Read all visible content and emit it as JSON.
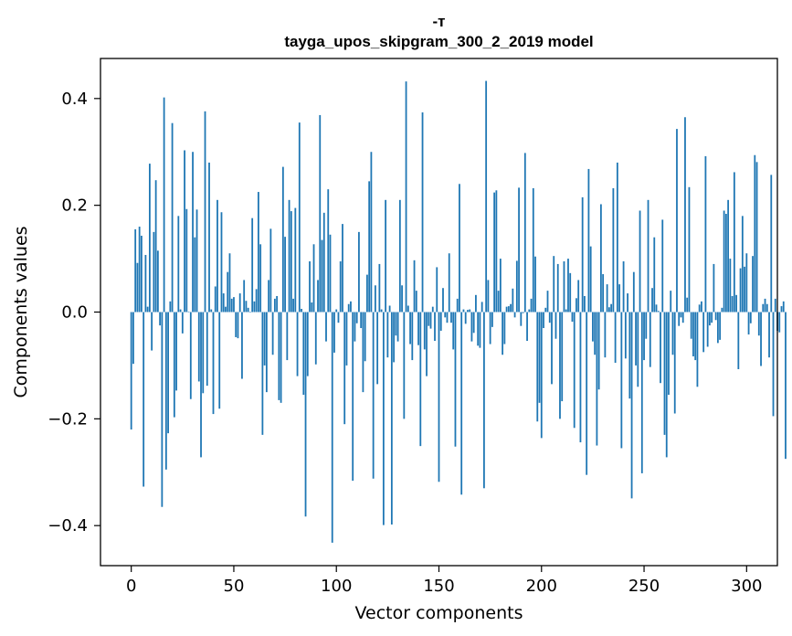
{
  "chart_data": {
    "type": "bar",
    "title": "-т",
    "subtitle": "tayga_upos_skipgram_300_2_2019 model",
    "xlabel": "Vector components",
    "ylabel": "Components values",
    "xlim": [
      -15,
      315
    ],
    "ylim": [
      -0.475,
      0.475
    ],
    "x_ticks": [
      0,
      50,
      100,
      150,
      200,
      250,
      300
    ],
    "y_ticks": [
      -0.4,
      -0.2,
      0.0,
      0.2,
      0.4
    ],
    "y_tick_labels": [
      "−0.4",
      "−0.2",
      "0.0",
      "0.2",
      "0.4"
    ],
    "bar_color": "#1f77b4",
    "grid": false,
    "values": [
      -0.22,
      -0.097,
      0.155,
      0.092,
      0.16,
      0.143,
      -0.327,
      0.107,
      0.01,
      0.278,
      -0.072,
      0.15,
      0.247,
      0.115,
      -0.025,
      -0.365,
      0.402,
      -0.295,
      -0.227,
      0.02,
      0.354,
      -0.197,
      -0.147,
      0.18,
      0.005,
      -0.04,
      0.303,
      0.193,
      0.001,
      -0.163,
      0.3,
      0.14,
      0.192,
      -0.13,
      -0.272,
      -0.152,
      0.376,
      -0.138,
      0.28,
      0.005,
      -0.191,
      0.048,
      0.21,
      -0.181,
      0.187,
      0.035,
      0.01,
      0.075,
      0.11,
      0.025,
      0.028,
      -0.047,
      -0.049,
      0.035,
      -0.125,
      0.06,
      0.021,
      0.008,
      -0.001,
      0.176,
      0.02,
      0.043,
      0.225,
      0.127,
      -0.23,
      -0.1,
      -0.15,
      0.06,
      0.156,
      -0.08,
      0.025,
      0.03,
      -0.165,
      -0.17,
      0.272,
      0.141,
      -0.09,
      0.21,
      0.189,
      0.025,
      0.195,
      -0.12,
      0.355,
      0.006,
      -0.155,
      -0.383,
      -0.12,
      0.095,
      0.018,
      0.127,
      -0.098,
      0.06,
      0.369,
      0.135,
      0.186,
      -0.055,
      0.23,
      0.145,
      -0.432,
      -0.076,
      0.005,
      -0.02,
      0.095,
      0.165,
      -0.21,
      -0.1,
      0.015,
      0.02,
      -0.316,
      -0.055,
      -0.021,
      0.15,
      -0.03,
      -0.15,
      -0.092,
      0.07,
      0.245,
      0.3,
      -0.312,
      0.05,
      -0.135,
      0.09,
      0.005,
      -0.399,
      0.21,
      -0.085,
      0.012,
      -0.398,
      -0.094,
      -0.044,
      -0.055,
      0.21,
      0.05,
      -0.2,
      0.432,
      0.012,
      -0.06,
      -0.09,
      0.097,
      0.04,
      -0.062,
      -0.251,
      0.374,
      -0.07,
      -0.12,
      -0.026,
      -0.031,
      0.01,
      -0.054,
      0.084,
      -0.318,
      -0.035,
      0.045,
      -0.01,
      -0.02,
      0.11,
      -0.02,
      -0.07,
      -0.252,
      0.025,
      0.24,
      -0.342,
      0.005,
      -0.022,
      0.004,
      0.005,
      -0.055,
      -0.039,
      0.032,
      -0.063,
      -0.067,
      0.019,
      -0.33,
      0.433,
      0.06,
      -0.06,
      -0.028,
      0.224,
      0.228,
      0.04,
      0.1,
      -0.08,
      -0.06,
      0.01,
      0.011,
      0.015,
      0.044,
      -0.01,
      0.096,
      0.233,
      -0.026,
      -0.002,
      0.298,
      -0.054,
      0.005,
      0.025,
      0.232,
      0.104,
      -0.205,
      -0.17,
      -0.236,
      -0.03,
      0.008,
      0.04,
      -0.02,
      -0.135,
      0.105,
      -0.05,
      0.09,
      -0.2,
      -0.167,
      0.095,
      0.005,
      0.1,
      0.073,
      -0.018,
      -0.217,
      0.026,
      0.06,
      -0.244,
      0.215,
      0.03,
      -0.305,
      0.268,
      0.123,
      -0.055,
      -0.08,
      -0.25,
      -0.145,
      0.202,
      0.071,
      -0.085,
      0.052,
      0.009,
      0.015,
      0.232,
      -0.095,
      0.28,
      0.052,
      -0.255,
      0.095,
      -0.087,
      0.035,
      -0.162,
      -0.349,
      0.075,
      -0.1,
      -0.14,
      0.19,
      -0.302,
      -0.09,
      -0.05,
      0.21,
      -0.103,
      0.045,
      0.14,
      0.014,
      0.002,
      -0.133,
      0.173,
      -0.23,
      -0.272,
      -0.155,
      0.04,
      -0.08,
      -0.19,
      0.343,
      -0.026,
      -0.01,
      -0.02,
      0.365,
      0.027,
      0.234,
      -0.05,
      -0.083,
      -0.09,
      -0.14,
      0.014,
      0.02,
      -0.075,
      0.292,
      -0.065,
      -0.025,
      -0.02,
      0.09,
      -0.015,
      -0.058,
      -0.052,
      0.008,
      0.19,
      0.184,
      0.21,
      0.1,
      0.03,
      0.262,
      0.032,
      -0.107,
      0.082,
      0.18,
      0.085,
      0.11,
      -0.042,
      -0.021,
      0.105,
      0.294,
      0.281,
      -0.044,
      -0.101,
      0.015,
      0.025,
      0.015,
      -0.085,
      0.257,
      -0.195,
      0.025,
      -0.035,
      -0.038,
      0.011,
      0.02,
      -0.275
    ]
  }
}
